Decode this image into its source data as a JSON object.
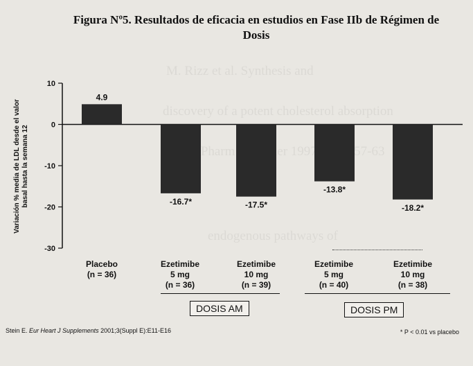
{
  "title_line1": "Figura Nº5. Resultados de eficacia en estudios en Fase IIb de Régimen de",
  "title_line2": "Dosis",
  "ylabel_line1": "Variación % media de LDL  desde el valor",
  "ylabel_line2": "basal hasta la semana 12",
  "yticks": [
    "10",
    "0",
    "-10",
    "-20",
    "-30"
  ],
  "groups": [
    {
      "label": "DOSIS AM"
    },
    {
      "label": "DOSIS PM"
    }
  ],
  "footer": {
    "citation_prefix": "Stein E. ",
    "citation_journal": "Eur Heart J Supplements",
    "citation_suffix": " 2001;3(Suppl E):E11-E16",
    "note": "* P < 0.01 vs placebo"
  },
  "chart_data": {
    "type": "bar",
    "categories": [
      {
        "line1": "Placebo",
        "line2": "(n = 36)",
        "line3": ""
      },
      {
        "line1": "Ezetimibe",
        "line2": "5 mg",
        "line3": "(n = 36)"
      },
      {
        "line1": "Ezetimibe",
        "line2": "10 mg",
        "line3": "(n = 39)"
      },
      {
        "line1": "Ezetimibe",
        "line2": "5 mg",
        "line3": "(n = 40)"
      },
      {
        "line1": "Ezetimibe",
        "line2": "10 mg",
        "line3": "(n = 38)"
      }
    ],
    "values": [
      4.9,
      -16.7,
      -17.5,
      -13.8,
      -18.2
    ],
    "value_labels": [
      "4.9",
      "-16.7*",
      "-17.5*",
      "-13.8*",
      "-18.2*"
    ],
    "ylim": [
      -30,
      10
    ],
    "colors": {
      "bar": "#2a2a2a",
      "axis": "#111111"
    }
  }
}
